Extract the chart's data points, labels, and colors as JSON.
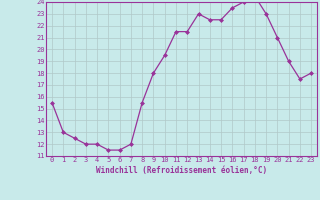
{
  "x": [
    0,
    1,
    2,
    3,
    4,
    5,
    6,
    7,
    8,
    9,
    10,
    11,
    12,
    13,
    14,
    15,
    16,
    17,
    18,
    19,
    20,
    21,
    22,
    23
  ],
  "y": [
    15.5,
    13.0,
    12.5,
    12.0,
    12.0,
    11.5,
    11.5,
    12.0,
    15.5,
    18.0,
    19.5,
    21.5,
    21.5,
    23.0,
    22.5,
    22.5,
    23.5,
    24.0,
    24.5,
    23.0,
    21.0,
    19.0,
    17.5,
    18.0
  ],
  "xlim": [
    -0.5,
    23.5
  ],
  "ylim": [
    11,
    24
  ],
  "yticks": [
    11,
    12,
    13,
    14,
    15,
    16,
    17,
    18,
    19,
    20,
    21,
    22,
    23,
    24
  ],
  "xticks": [
    0,
    1,
    2,
    3,
    4,
    5,
    6,
    7,
    8,
    9,
    10,
    11,
    12,
    13,
    14,
    15,
    16,
    17,
    18,
    19,
    20,
    21,
    22,
    23
  ],
  "xlabel": "Windchill (Refroidissement éolien,°C)",
  "line_color": "#993399",
  "marker_color": "#993399",
  "bg_color": "#c8eaea",
  "grid_color": "#b0c8c8",
  "spine_color": "#993399"
}
